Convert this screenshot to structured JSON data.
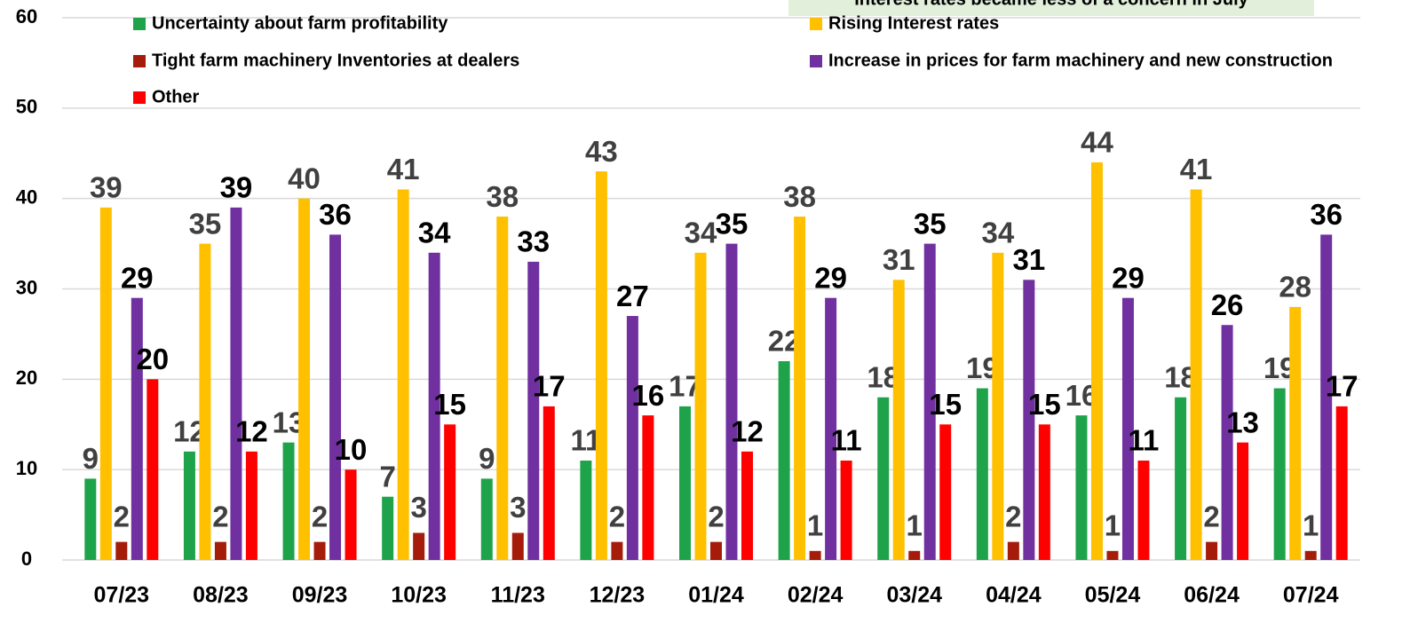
{
  "chart_data": {
    "type": "bar",
    "annotation": "Interest rates became less of a concern in July",
    "categories": [
      "07/23",
      "08/23",
      "09/23",
      "10/23",
      "11/23",
      "12/23",
      "01/24",
      "02/24",
      "03/24",
      "04/24",
      "05/24",
      "06/24",
      "07/24"
    ],
    "series": [
      {
        "name": "Uncertainty about farm profitability",
        "color": "#1fa34a",
        "label_color": "#404040",
        "values": [
          9,
          12,
          13,
          7,
          9,
          11,
          17,
          22,
          18,
          19,
          16,
          18,
          19
        ]
      },
      {
        "name": "Rising Interest rates",
        "color": "#ffc000",
        "label_color": "#404040",
        "values": [
          39,
          35,
          40,
          41,
          38,
          43,
          34,
          38,
          31,
          34,
          44,
          41,
          28
        ]
      },
      {
        "name": "Tight farm machinery Inventories at dealers",
        "color": "#a51c0a",
        "label_color": "#404040",
        "values": [
          2,
          2,
          2,
          3,
          3,
          2,
          2,
          1,
          1,
          2,
          1,
          2,
          1
        ]
      },
      {
        "name": "Increase in prices for farm machinery and new construction",
        "color": "#7030a0",
        "label_color": "#000000",
        "values": [
          29,
          39,
          36,
          34,
          33,
          27,
          35,
          29,
          35,
          31,
          29,
          26,
          36
        ]
      },
      {
        "name": "Other",
        "color": "#ff0000",
        "label_color": "#000000",
        "values": [
          20,
          12,
          10,
          15,
          17,
          16,
          12,
          11,
          15,
          15,
          11,
          13,
          17
        ]
      }
    ],
    "ylim": [
      0,
      60
    ],
    "yticks": [
      0,
      10,
      20,
      30,
      40,
      50,
      60
    ],
    "grid": true
  }
}
